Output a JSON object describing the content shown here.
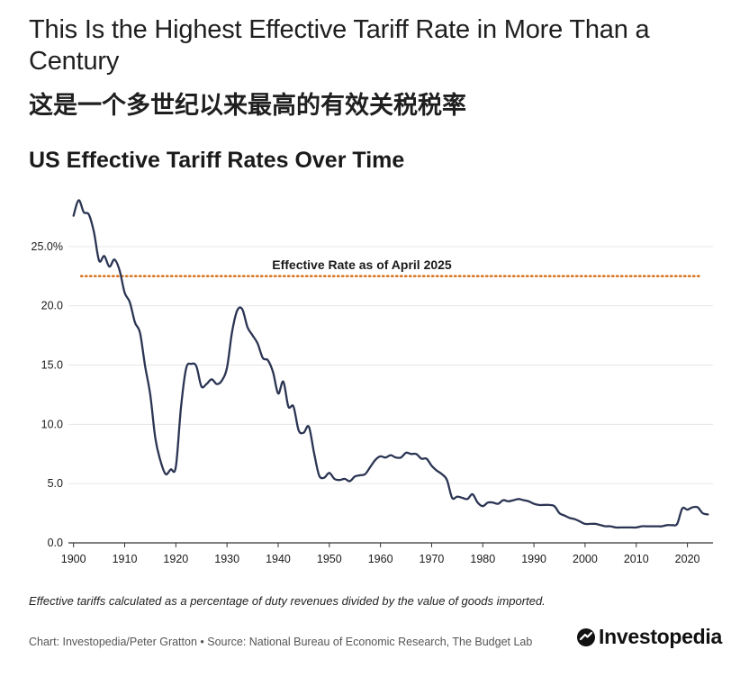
{
  "header": {
    "title": "This Is the Highest Effective Tariff Rate in More Than a Century",
    "title_cn": "这是一个多世纪以来最高的有效关税税率",
    "chart_title": "US Effective Tariff Rates Over Time"
  },
  "footer": {
    "footnote": "Effective tariffs calculated as a percentage of duty revenues divided by the value of goods imported.",
    "source": "Chart: Investopedia/Peter Gratton • Source: National Bureau of Economic Research, The Budget Lab",
    "logo_text": "Investopedia"
  },
  "colors": {
    "line": "#2b3553",
    "reference": "#d9731f",
    "grid": "#e6e6e6",
    "axis": "#333333"
  },
  "chart_data": {
    "type": "line",
    "title": "US Effective Tariff Rates Over Time",
    "xlabel": "",
    "ylabel": "",
    "xlim": [
      1899,
      2025
    ],
    "ylim": [
      0,
      30
    ],
    "grid": true,
    "x_ticks": [
      1900,
      1910,
      1920,
      1930,
      1940,
      1950,
      1960,
      1970,
      1980,
      1990,
      2000,
      2010,
      2020
    ],
    "y_ticks": [
      {
        "value": 0,
        "label": "0.0"
      },
      {
        "value": 5,
        "label": "5.0"
      },
      {
        "value": 10,
        "label": "10.0"
      },
      {
        "value": 15,
        "label": "15.0"
      },
      {
        "value": 20,
        "label": "20.0"
      },
      {
        "value": 25,
        "label": "25.0%"
      }
    ],
    "reference_line": {
      "value": 22.5,
      "label": "Effective Rate as of April 2025"
    },
    "series": [
      {
        "points": [
          [
            1900,
            27.6
          ],
          [
            1901,
            28.9
          ],
          [
            1902,
            27.9
          ],
          [
            1903,
            27.7
          ],
          [
            1904,
            26.2
          ],
          [
            1905,
            23.8
          ],
          [
            1906,
            24.2
          ],
          [
            1907,
            23.3
          ],
          [
            1908,
            23.9
          ],
          [
            1909,
            23.0
          ],
          [
            1910,
            21.1
          ],
          [
            1911,
            20.3
          ],
          [
            1912,
            18.6
          ],
          [
            1913,
            17.7
          ],
          [
            1914,
            14.9
          ],
          [
            1915,
            12.5
          ],
          [
            1916,
            8.8
          ],
          [
            1917,
            6.9
          ],
          [
            1918,
            5.8
          ],
          [
            1919,
            6.2
          ],
          [
            1920,
            6.4
          ],
          [
            1921,
            11.4
          ],
          [
            1922,
            14.7
          ],
          [
            1923,
            15.1
          ],
          [
            1924,
            14.9
          ],
          [
            1925,
            13.2
          ],
          [
            1926,
            13.4
          ],
          [
            1927,
            13.8
          ],
          [
            1928,
            13.4
          ],
          [
            1929,
            13.7
          ],
          [
            1930,
            14.8
          ],
          [
            1931,
            17.8
          ],
          [
            1932,
            19.6
          ],
          [
            1933,
            19.7
          ],
          [
            1934,
            18.2
          ],
          [
            1935,
            17.5
          ],
          [
            1936,
            16.8
          ],
          [
            1937,
            15.6
          ],
          [
            1938,
            15.4
          ],
          [
            1939,
            14.4
          ],
          [
            1940,
            12.6
          ],
          [
            1941,
            13.6
          ],
          [
            1942,
            11.5
          ],
          [
            1943,
            11.5
          ],
          [
            1944,
            9.5
          ],
          [
            1945,
            9.3
          ],
          [
            1946,
            9.8
          ],
          [
            1947,
            7.6
          ],
          [
            1948,
            5.7
          ],
          [
            1949,
            5.5
          ],
          [
            1950,
            5.9
          ],
          [
            1951,
            5.4
          ],
          [
            1952,
            5.3
          ],
          [
            1953,
            5.4
          ],
          [
            1954,
            5.2
          ],
          [
            1955,
            5.6
          ],
          [
            1956,
            5.7
          ],
          [
            1957,
            5.8
          ],
          [
            1958,
            6.4
          ],
          [
            1959,
            7.0
          ],
          [
            1960,
            7.3
          ],
          [
            1961,
            7.2
          ],
          [
            1962,
            7.4
          ],
          [
            1963,
            7.2
          ],
          [
            1964,
            7.2
          ],
          [
            1965,
            7.6
          ],
          [
            1966,
            7.5
          ],
          [
            1967,
            7.5
          ],
          [
            1968,
            7.1
          ],
          [
            1969,
            7.1
          ],
          [
            1970,
            6.5
          ],
          [
            1971,
            6.1
          ],
          [
            1972,
            5.8
          ],
          [
            1973,
            5.3
          ],
          [
            1974,
            3.8
          ],
          [
            1975,
            3.9
          ],
          [
            1976,
            3.8
          ],
          [
            1977,
            3.7
          ],
          [
            1978,
            4.1
          ],
          [
            1979,
            3.4
          ],
          [
            1980,
            3.1
          ],
          [
            1981,
            3.4
          ],
          [
            1982,
            3.4
          ],
          [
            1983,
            3.3
          ],
          [
            1984,
            3.6
          ],
          [
            1985,
            3.5
          ],
          [
            1986,
            3.6
          ],
          [
            1987,
            3.7
          ],
          [
            1988,
            3.6
          ],
          [
            1989,
            3.5
          ],
          [
            1990,
            3.3
          ],
          [
            1991,
            3.2
          ],
          [
            1992,
            3.2
          ],
          [
            1993,
            3.2
          ],
          [
            1994,
            3.1
          ],
          [
            1995,
            2.5
          ],
          [
            1996,
            2.3
          ],
          [
            1997,
            2.1
          ],
          [
            1998,
            2.0
          ],
          [
            1999,
            1.8
          ],
          [
            2000,
            1.6
          ],
          [
            2001,
            1.6
          ],
          [
            2002,
            1.6
          ],
          [
            2003,
            1.5
          ],
          [
            2004,
            1.4
          ],
          [
            2005,
            1.4
          ],
          [
            2006,
            1.3
          ],
          [
            2007,
            1.3
          ],
          [
            2008,
            1.3
          ],
          [
            2009,
            1.3
          ],
          [
            2010,
            1.3
          ],
          [
            2011,
            1.4
          ],
          [
            2012,
            1.4
          ],
          [
            2013,
            1.4
          ],
          [
            2014,
            1.4
          ],
          [
            2015,
            1.4
          ],
          [
            2016,
            1.5
          ],
          [
            2017,
            1.5
          ],
          [
            2018,
            1.6
          ],
          [
            2019,
            2.9
          ],
          [
            2020,
            2.8
          ],
          [
            2021,
            3.0
          ],
          [
            2022,
            3.0
          ],
          [
            2023,
            2.5
          ],
          [
            2024,
            2.4
          ]
        ]
      }
    ]
  }
}
